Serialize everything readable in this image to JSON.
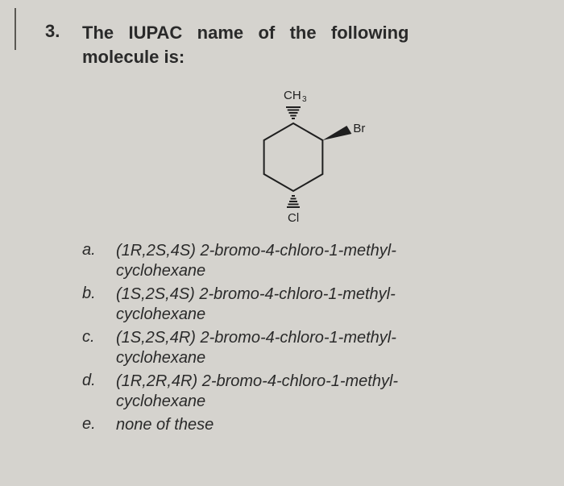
{
  "question": {
    "number": "3.",
    "title_words": [
      "The",
      "IUPAC",
      "name",
      "of",
      "the",
      "following"
    ],
    "title_line2": "molecule is:"
  },
  "molecule": {
    "label_top": "CH",
    "label_top_sub": "3",
    "label_right": "Br",
    "label_bottom": "Cl",
    "hex_stroke": "#1f1f1f",
    "hex_stroke_width": 2,
    "wedge_fill": "#1f1f1f",
    "hash_stroke": "#1f1f1f",
    "hash_stroke_width": 2,
    "font_size_label": 15,
    "font_size_sub": 10
  },
  "answers": [
    {
      "letter": "a.",
      "line1": "(1R,2S,4S) 2-bromo-4-chloro-1-methyl-",
      "line2": "cyclohexane"
    },
    {
      "letter": "b.",
      "line1": "(1S,2S,4S) 2-bromo-4-chloro-1-methyl-",
      "line2": "cyclohexane"
    },
    {
      "letter": "c.",
      "line1": "(1S,2S,4R) 2-bromo-4-chloro-1-methyl-",
      "line2": "cyclohexane"
    },
    {
      "letter": "d.",
      "line1": "(1R,2R,4R) 2-bromo-4-chloro-1-methyl-",
      "line2": "cyclohexane"
    },
    {
      "letter": "e.",
      "line1": "none of these",
      "line2": ""
    }
  ]
}
